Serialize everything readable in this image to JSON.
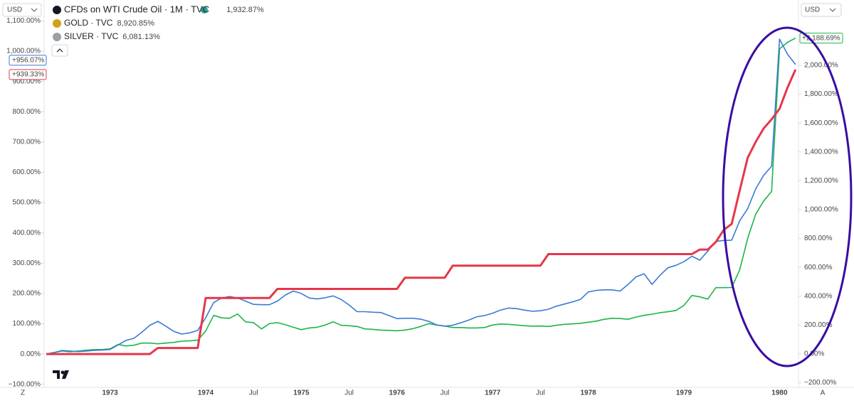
{
  "chart_data": {
    "type": "line",
    "currency_left": "USD",
    "currency_right": "USD",
    "scale_left_mode": "Z",
    "scale_right_mode": "A",
    "categories": [
      null,
      null,
      null,
      null,
      null,
      null,
      null,
      null,
      "1973",
      null,
      null,
      null,
      null,
      null,
      null,
      null,
      null,
      null,
      null,
      null,
      "1974",
      null,
      null,
      null,
      null,
      null,
      "Jul",
      null,
      null,
      null,
      null,
      null,
      "1975",
      null,
      null,
      null,
      null,
      null,
      "Jul",
      null,
      null,
      null,
      null,
      null,
      "1976",
      null,
      null,
      null,
      null,
      null,
      "Jul",
      null,
      null,
      null,
      null,
      null,
      "1977",
      null,
      null,
      null,
      null,
      null,
      "Jul",
      null,
      null,
      null,
      null,
      null,
      "1978",
      null,
      null,
      null,
      null,
      null,
      null,
      null,
      null,
      null,
      null,
      null,
      "1979",
      null,
      null,
      null,
      null,
      null,
      null,
      null,
      null,
      null,
      null,
      null,
      "1980",
      null,
      null
    ],
    "series": [
      {
        "name": "CFDs on WTI Crude Oil · 1M · TVC",
        "legend_value": "1,932.87%",
        "price_label": "+939.33%",
        "color": "#e5374a",
        "axis": "y",
        "values": [
          0,
          0,
          0,
          0,
          0,
          0,
          0,
          0,
          0,
          0,
          0,
          0,
          0,
          0,
          20,
          20,
          20,
          20,
          20,
          20,
          185,
          185,
          185,
          185,
          185,
          185,
          185,
          185,
          185,
          215,
          215,
          215,
          215,
          215,
          215,
          215,
          215,
          215,
          215,
          215,
          215,
          215,
          215,
          215,
          215,
          252,
          252,
          252,
          252,
          252,
          252,
          292,
          292,
          292,
          292,
          292,
          292,
          292,
          292,
          292,
          292,
          292,
          292,
          330,
          330,
          330,
          330,
          330,
          330,
          330,
          330,
          330,
          330,
          330,
          330,
          330,
          330,
          330,
          330,
          330,
          330,
          330,
          345,
          345,
          370,
          410,
          430,
          540,
          648,
          700,
          745,
          775,
          810,
          880,
          939.33
        ]
      },
      {
        "name": "GOLD · TVC",
        "legend_value": "8,920.85%",
        "price_label": "+956.07%",
        "color": "#3a7bd5",
        "axis": "y",
        "values": [
          0,
          5,
          12,
          10,
          8,
          10,
          12,
          13,
          15,
          30,
          45,
          52,
          72,
          95,
          108,
          92,
          75,
          66,
          70,
          78,
          120,
          170,
          185,
          190,
          185,
          175,
          164,
          163,
          163,
          175,
          195,
          208,
          200,
          185,
          182,
          186,
          192,
          180,
          162,
          140,
          140,
          138,
          137,
          127,
          117,
          118,
          118,
          115,
          108,
          96,
          92,
          95,
          103,
          112,
          123,
          127,
          135,
          145,
          152,
          150,
          145,
          141,
          143,
          148,
          158,
          165,
          172,
          180,
          205,
          210,
          212,
          212,
          208,
          230,
          255,
          265,
          230,
          260,
          285,
          293,
          305,
          323,
          310,
          340,
          372,
          375,
          376,
          440,
          480,
          545,
          590,
          620,
          1040,
          990,
          956.07
        ]
      },
      {
        "name": "SILVER · TVC",
        "legend_value": "6,081.13%",
        "price_label": "+2,188.69%",
        "color": "#1eb44a",
        "axis": "y2",
        "values": [
          0,
          10,
          20,
          15,
          20,
          25,
          30,
          30,
          35,
          65,
          55,
          60,
          75,
          75,
          70,
          75,
          80,
          88,
          90,
          95,
          158,
          267,
          250,
          247,
          277,
          222,
          217,
          173,
          210,
          217,
          202,
          185,
          168,
          180,
          185,
          200,
          222,
          198,
          195,
          190,
          173,
          170,
          165,
          163,
          160,
          165,
          175,
          190,
          210,
          200,
          193,
          183,
          183,
          180,
          180,
          183,
          200,
          207,
          205,
          200,
          195,
          192,
          193,
          190,
          198,
          205,
          208,
          212,
          220,
          227,
          240,
          247,
          245,
          240,
          255,
          267,
          275,
          286,
          292,
          301,
          336,
          405,
          395,
          380,
          459,
          459,
          460,
          583,
          800,
          968,
          1060,
          1126,
          2114,
          2160,
          2188.69
        ]
      }
    ],
    "ylim": [
      -110,
      1169
    ],
    "yticks": [
      {
        "value": -100,
        "label": "−100.00%"
      },
      {
        "value": 0,
        "label": "0.00%"
      },
      {
        "value": 100,
        "label": "100.00%"
      },
      {
        "value": 200,
        "label": "200.00%"
      },
      {
        "value": 300,
        "label": "300.00%"
      },
      {
        "value": 400,
        "label": "400.00%"
      },
      {
        "value": 500,
        "label": "500.00%"
      },
      {
        "value": 600,
        "label": "600.00%"
      },
      {
        "value": 700,
        "label": "700.00%"
      },
      {
        "value": 800,
        "label": "800.00%"
      },
      {
        "value": 900,
        "label": "900.00%"
      },
      {
        "value": 1000,
        "label": "1,000.00%"
      },
      {
        "value": 1100,
        "label": "1,100.00%"
      }
    ],
    "y2lim": [
      -232,
      2453
    ],
    "y2ticks": [
      {
        "value": -200,
        "label": "−200.00%"
      },
      {
        "value": 0,
        "label": "0.00%"
      },
      {
        "value": 200,
        "label": "200.00%"
      },
      {
        "value": 400,
        "label": "400.00%"
      },
      {
        "value": 600,
        "label": "600.00%"
      },
      {
        "value": 800,
        "label": "800.00%"
      },
      {
        "value": 1000,
        "label": "1,000.00%"
      },
      {
        "value": 1200,
        "label": "1,200.00%"
      },
      {
        "value": 1400,
        "label": "1,400.00%"
      },
      {
        "value": 1600,
        "label": "1,600.00%"
      },
      {
        "value": 1800,
        "label": "1,800.00%"
      },
      {
        "value": 2000,
        "label": "2,000.00%"
      }
    ],
    "grid": false
  }
}
